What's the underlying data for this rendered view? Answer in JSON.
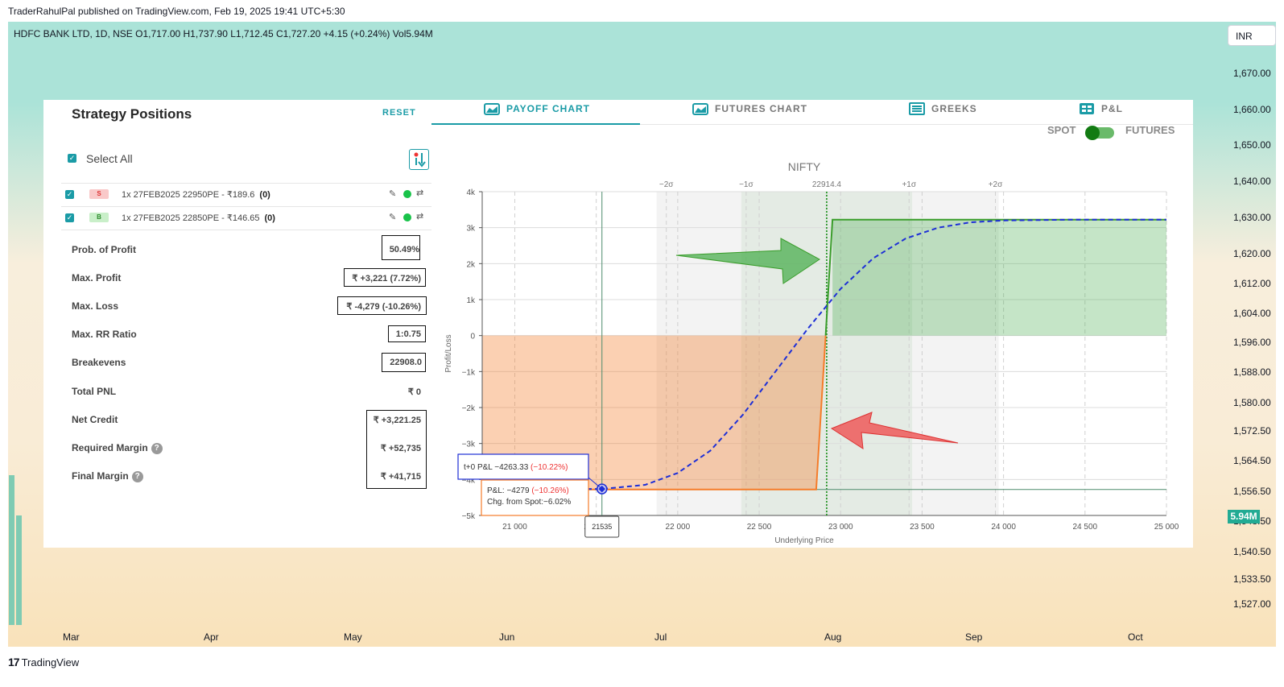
{
  "publisher_line": "TraderRahulPal published on TradingView.com, Feb 19, 2025 19:41 UTC+5:30",
  "symbol_line": "HDFC BANK LTD, 1D, NSE  O1,717.00  H1,737.90  L1,712.45  C1,727.20  +4.15 (+0.24%)  Vol5.94M",
  "currency": "INR",
  "price_scale": [
    "1,670.00",
    "1,660.00",
    "1,650.00",
    "1,640.00",
    "1,630.00",
    "1,620.00",
    "1,612.00",
    "1,604.00",
    "1,596.00",
    "1,588.00",
    "1,580.00",
    "1,572.50",
    "1,564.50",
    "1,556.50",
    "1,548.50",
    "1,540.50",
    "1,533.50",
    "1,527.00"
  ],
  "volume_tag": "5.94M",
  "months": [
    "Mar",
    "Apr",
    "May",
    "Jun",
    "Jul",
    "Aug",
    "Sep",
    "Oct"
  ],
  "brand": {
    "logo": "17",
    "name": "TradingView"
  },
  "strategy": {
    "title": "Strategy Positions",
    "reset": "RESET",
    "select_all": "Select All",
    "legs": [
      {
        "side": "S",
        "text": "1x  27FEB2025 22950PE - ₹189.6",
        "qty": "(0)"
      },
      {
        "side": "B",
        "text": "1x  27FEB2025 22850PE - ₹146.65",
        "qty": "(0)"
      }
    ],
    "stats": [
      {
        "label": "Prob. of Profit",
        "value": "50.49%"
      },
      {
        "label": "Max. Profit",
        "value": "₹ +3,221 (7.72%)"
      },
      {
        "label": "Max. Loss",
        "value": "₹ -4,279 (-10.26%)"
      },
      {
        "label": "Max. RR Ratio",
        "value": "1:0.75"
      },
      {
        "label": "Breakevens",
        "value": "22908.0"
      },
      {
        "label": "Total PNL",
        "value": "₹ 0"
      },
      {
        "label": "Net Credit",
        "value": "₹ +3,221.25"
      },
      {
        "label": "Required Margin",
        "value": "₹ +52,735"
      },
      {
        "label": "Final Margin",
        "value": "₹ +41,715"
      }
    ]
  },
  "tabs": [
    "PAYOFF CHART",
    "FUTURES CHART",
    "GREEKS",
    "P&L"
  ],
  "toggle": {
    "left": "SPOT",
    "right": "FUTURES"
  },
  "colors": {
    "accent": "#1a9ba6",
    "profit": "#4caf50",
    "loss": "#f57c2a",
    "tplus0": "#1e2fd6"
  },
  "chart_data": {
    "type": "line",
    "title": "NIFTY",
    "xlabel": "Underlying Price",
    "ylabel": "Profit/Loss",
    "xlim": [
      20800,
      25000
    ],
    "ylim": [
      -5000,
      4000
    ],
    "x_ticks": [
      21000,
      21500,
      22000,
      22500,
      23000,
      23500,
      24000,
      24500,
      25000
    ],
    "x_tick_labels": [
      "21 000",
      "21 500",
      "22 000",
      "22 500",
      "23 000",
      "23 500",
      "24 000",
      "24 500",
      "25 000"
    ],
    "y_ticks": [
      4000,
      3000,
      2000,
      1000,
      0,
      -1000,
      -2000,
      -3000,
      -4000,
      -5000
    ],
    "y_tick_labels": [
      "4k",
      "3k",
      "2k",
      "1k",
      "0",
      "−1k",
      "−2k",
      "−3k",
      "−4k",
      "−5k"
    ],
    "sigma_marks": [
      {
        "label": "−2σ",
        "x": 21930
      },
      {
        "label": "−1σ",
        "x": 22420
      },
      {
        "label": "22914.4",
        "x": 22914.4
      },
      {
        "label": "+1σ",
        "x": 23420
      },
      {
        "label": "+2σ",
        "x": 23950
      }
    ],
    "sigma_bands": [
      [
        21870,
        22390
      ],
      [
        22390,
        23440
      ],
      [
        23440,
        23970
      ]
    ],
    "series": [
      {
        "name": "Expiry P&L",
        "points": [
          [
            20800,
            -4279
          ],
          [
            22850,
            -4279
          ],
          [
            22950,
            3221
          ],
          [
            25000,
            3221
          ]
        ]
      },
      {
        "name": "t+0 P&L",
        "points": [
          [
            20800,
            -4263
          ],
          [
            21535,
            -4263
          ],
          [
            21800,
            -4150
          ],
          [
            22000,
            -3820
          ],
          [
            22200,
            -3200
          ],
          [
            22400,
            -2200
          ],
          [
            22600,
            -1000
          ],
          [
            22800,
            200
          ],
          [
            23000,
            1300
          ],
          [
            23200,
            2150
          ],
          [
            23400,
            2700
          ],
          [
            23600,
            3000
          ],
          [
            23800,
            3150
          ],
          [
            24000,
            3200
          ],
          [
            24400,
            3221
          ],
          [
            25000,
            3221
          ]
        ]
      }
    ],
    "cursor": {
      "x": 21535,
      "x_label": "21535",
      "tplus0_text": "t+0 P&L −4263.33",
      "tplus0_pct": "(−10.22%)",
      "pnl_text": "P&L: −4279",
      "pnl_pct": "(−10.26%)",
      "chg_text": "Chg. from Spot:−6.02%"
    }
  }
}
